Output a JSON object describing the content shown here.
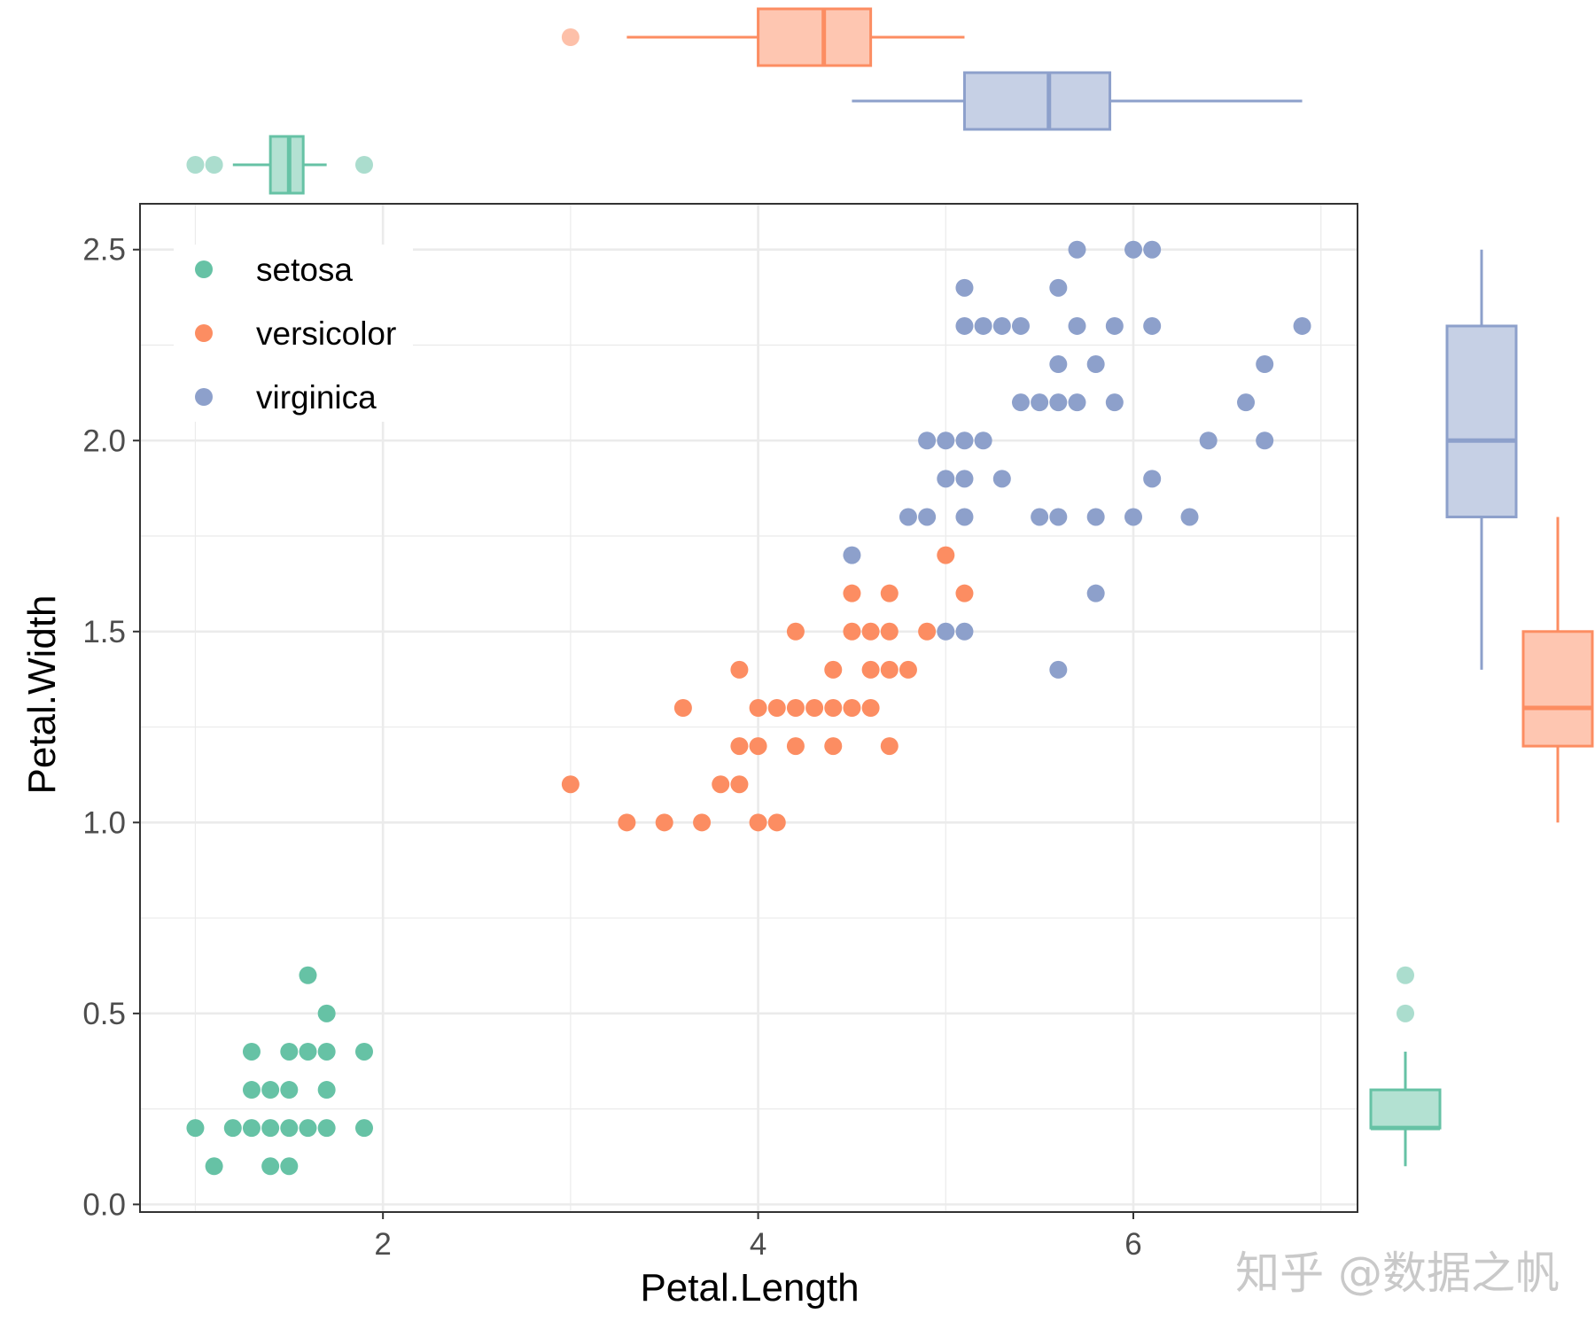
{
  "watermark": "知乎 @数据之帆",
  "colors": {
    "setosa": "#66c2a5",
    "versicolor": "#fc8d62",
    "virginica": "#8da0cb",
    "grid": "#ebebeb",
    "panel_border": "#333333"
  },
  "chart_data": {
    "type": "scatter",
    "title": "",
    "xlabel": "Petal.Length",
    "ylabel": "Petal.Width",
    "xlim": [
      0.705,
      7.195
    ],
    "ylim": [
      -0.02,
      2.62
    ],
    "x_ticks": [
      2,
      4,
      6
    ],
    "x_tick_labels": [
      "2",
      "4",
      "6"
    ],
    "y_ticks": [
      0,
      0.5,
      1,
      1.5,
      2,
      2.5
    ],
    "y_tick_labels": [
      "0.0",
      "0.5",
      "1.0",
      "1.5",
      "2.0",
      "2.5"
    ],
    "grid": true,
    "legend": {
      "position": "top-left",
      "entries": [
        "setosa",
        "versicolor",
        "virginica"
      ]
    },
    "series": [
      {
        "name": "setosa",
        "points": [
          [
            1.0,
            0.2
          ],
          [
            1.1,
            0.1
          ],
          [
            1.2,
            0.2
          ],
          [
            1.3,
            0.2
          ],
          [
            1.3,
            0.3
          ],
          [
            1.3,
            0.4
          ],
          [
            1.4,
            0.1
          ],
          [
            1.4,
            0.2
          ],
          [
            1.4,
            0.3
          ],
          [
            1.5,
            0.1
          ],
          [
            1.5,
            0.2
          ],
          [
            1.5,
            0.3
          ],
          [
            1.5,
            0.4
          ],
          [
            1.6,
            0.2
          ],
          [
            1.6,
            0.4
          ],
          [
            1.6,
            0.6
          ],
          [
            1.7,
            0.2
          ],
          [
            1.7,
            0.3
          ],
          [
            1.7,
            0.4
          ],
          [
            1.7,
            0.5
          ],
          [
            1.9,
            0.2
          ],
          [
            1.9,
            0.4
          ]
        ]
      },
      {
        "name": "versicolor",
        "points": [
          [
            3.0,
            1.1
          ],
          [
            3.3,
            1.0
          ],
          [
            3.5,
            1.0
          ],
          [
            3.6,
            1.3
          ],
          [
            3.7,
            1.0
          ],
          [
            3.8,
            1.1
          ],
          [
            3.9,
            1.1
          ],
          [
            3.9,
            1.2
          ],
          [
            3.9,
            1.4
          ],
          [
            4.0,
            1.0
          ],
          [
            4.0,
            1.2
          ],
          [
            4.0,
            1.3
          ],
          [
            4.1,
            1.0
          ],
          [
            4.1,
            1.3
          ],
          [
            4.2,
            1.2
          ],
          [
            4.2,
            1.3
          ],
          [
            4.2,
            1.5
          ],
          [
            4.3,
            1.3
          ],
          [
            4.4,
            1.2
          ],
          [
            4.4,
            1.3
          ],
          [
            4.4,
            1.4
          ],
          [
            4.5,
            1.3
          ],
          [
            4.5,
            1.5
          ],
          [
            4.5,
            1.6
          ],
          [
            4.6,
            1.3
          ],
          [
            4.6,
            1.4
          ],
          [
            4.6,
            1.5
          ],
          [
            4.7,
            1.2
          ],
          [
            4.7,
            1.4
          ],
          [
            4.7,
            1.5
          ],
          [
            4.7,
            1.6
          ],
          [
            4.8,
            1.4
          ],
          [
            4.9,
            1.5
          ],
          [
            5.0,
            1.7
          ],
          [
            5.1,
            1.6
          ]
        ]
      },
      {
        "name": "virginica",
        "points": [
          [
            4.5,
            1.7
          ],
          [
            4.8,
            1.8
          ],
          [
            4.9,
            1.8
          ],
          [
            4.9,
            2.0
          ],
          [
            5.0,
            1.5
          ],
          [
            5.0,
            1.9
          ],
          [
            5.0,
            2.0
          ],
          [
            5.1,
            1.5
          ],
          [
            5.1,
            1.8
          ],
          [
            5.1,
            1.9
          ],
          [
            5.1,
            2.0
          ],
          [
            5.1,
            2.3
          ],
          [
            5.1,
            2.4
          ],
          [
            5.2,
            2.0
          ],
          [
            5.2,
            2.3
          ],
          [
            5.3,
            1.9
          ],
          [
            5.3,
            2.3
          ],
          [
            5.4,
            2.1
          ],
          [
            5.4,
            2.3
          ],
          [
            5.5,
            1.8
          ],
          [
            5.5,
            2.1
          ],
          [
            5.6,
            1.4
          ],
          [
            5.6,
            1.8
          ],
          [
            5.6,
            2.1
          ],
          [
            5.6,
            2.2
          ],
          [
            5.6,
            2.4
          ],
          [
            5.7,
            2.1
          ],
          [
            5.7,
            2.3
          ],
          [
            5.7,
            2.5
          ],
          [
            5.8,
            1.6
          ],
          [
            5.8,
            1.8
          ],
          [
            5.8,
            2.2
          ],
          [
            5.9,
            2.1
          ],
          [
            5.9,
            2.3
          ],
          [
            6.0,
            1.8
          ],
          [
            6.0,
            2.5
          ],
          [
            6.1,
            1.9
          ],
          [
            6.1,
            2.3
          ],
          [
            6.1,
            2.5
          ],
          [
            6.3,
            1.8
          ],
          [
            6.4,
            2.0
          ],
          [
            6.6,
            2.1
          ],
          [
            6.7,
            2.0
          ],
          [
            6.7,
            2.2
          ],
          [
            6.9,
            2.3
          ]
        ]
      }
    ],
    "marginal_boxplots": {
      "petal_length": [
        {
          "name": "setosa",
          "whisker_low": 1.2,
          "q1": 1.4,
          "median": 1.5,
          "q3": 1.575,
          "whisker_high": 1.7,
          "outliers": [
            1.0,
            1.1,
            1.9
          ]
        },
        {
          "name": "versicolor",
          "whisker_low": 3.3,
          "q1": 4.0,
          "median": 4.35,
          "q3": 4.6,
          "whisker_high": 5.1,
          "outliers": [
            3.0
          ]
        },
        {
          "name": "virginica",
          "whisker_low": 4.5,
          "q1": 5.1,
          "median": 5.55,
          "q3": 5.875,
          "whisker_high": 6.9,
          "outliers": []
        }
      ],
      "petal_width": [
        {
          "name": "setosa",
          "whisker_low": 0.1,
          "q1": 0.2,
          "median": 0.2,
          "q3": 0.3,
          "whisker_high": 0.4,
          "outliers": [
            0.5,
            0.6
          ]
        },
        {
          "name": "versicolor",
          "whisker_low": 1.0,
          "q1": 1.2,
          "median": 1.3,
          "q3": 1.5,
          "whisker_high": 1.8,
          "outliers": []
        },
        {
          "name": "virginica",
          "whisker_low": 1.4,
          "q1": 1.8,
          "median": 2.0,
          "q3": 2.3,
          "whisker_high": 2.5,
          "outliers": []
        }
      ]
    }
  }
}
